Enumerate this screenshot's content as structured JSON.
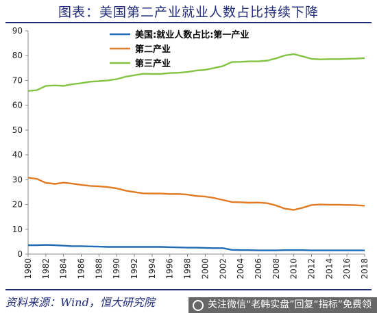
{
  "title": "图表：美国第二产业就业人数占比持续下降",
  "source": "资料来源：Wind，恒大研究院",
  "watermark": "关注微信“老韩实盘”回复“指标”免费领",
  "chart_data": {
    "type": "line",
    "title": "图表：美国第二产业就业人数占比持续下降",
    "xlabel": "",
    "ylabel": "",
    "xlim": [
      1980,
      2018
    ],
    "ylim": [
      0,
      90
    ],
    "yticks": [
      0,
      10,
      20,
      30,
      40,
      50,
      60,
      70,
      80,
      90
    ],
    "xticks": [
      1980,
      1982,
      1984,
      1986,
      1988,
      1990,
      1992,
      1994,
      1996,
      1998,
      2000,
      2002,
      2004,
      2006,
      2008,
      2010,
      2012,
      2014,
      2016,
      2018
    ],
    "grid": false,
    "legend": "top-center",
    "x": [
      1980,
      1981,
      1982,
      1983,
      1984,
      1985,
      1986,
      1987,
      1988,
      1989,
      1990,
      1991,
      1992,
      1993,
      1994,
      1995,
      1996,
      1997,
      1998,
      1999,
      2000,
      2001,
      2002,
      2003,
      2004,
      2005,
      2006,
      2007,
      2008,
      2009,
      2010,
      2011,
      2012,
      2013,
      2014,
      2015,
      2016,
      2017,
      2018
    ],
    "series": [
      {
        "name": "美国:就业人数占比:第一产业",
        "color": "#1f6bb5",
        "values": [
          3.6,
          3.6,
          3.7,
          3.6,
          3.4,
          3.2,
          3.2,
          3.1,
          3.0,
          2.9,
          2.9,
          2.9,
          2.9,
          2.9,
          2.9,
          2.9,
          2.8,
          2.7,
          2.6,
          2.6,
          2.5,
          2.4,
          2.4,
          1.7,
          1.6,
          1.6,
          1.5,
          1.5,
          1.5,
          1.6,
          1.6,
          1.6,
          1.5,
          1.5,
          1.5,
          1.5,
          1.5,
          1.5,
          1.5
        ]
      },
      {
        "name": "第二产业",
        "color": "#e07b24",
        "values": [
          30.8,
          30.3,
          28.7,
          28.3,
          28.8,
          28.4,
          27.9,
          27.5,
          27.3,
          27.0,
          26.5,
          25.6,
          25.0,
          24.5,
          24.4,
          24.4,
          24.2,
          24.2,
          24.0,
          23.4,
          23.2,
          22.6,
          21.8,
          21.0,
          20.9,
          20.7,
          20.8,
          20.5,
          19.6,
          18.3,
          17.8,
          18.7,
          19.8,
          20.0,
          19.9,
          19.9,
          19.8,
          19.7,
          19.5
        ]
      },
      {
        "name": "第三产业",
        "color": "#82c341",
        "values": [
          65.8,
          66.1,
          67.8,
          68.0,
          67.8,
          68.5,
          68.9,
          69.5,
          69.7,
          70.0,
          70.5,
          71.5,
          72.1,
          72.7,
          72.6,
          72.6,
          73.0,
          73.1,
          73.4,
          74.0,
          74.3,
          75.0,
          75.8,
          77.4,
          77.5,
          77.7,
          77.7,
          78.0,
          78.9,
          80.1,
          80.6,
          79.7,
          78.7,
          78.5,
          78.6,
          78.6,
          78.7,
          78.8,
          79.0
        ]
      }
    ]
  }
}
